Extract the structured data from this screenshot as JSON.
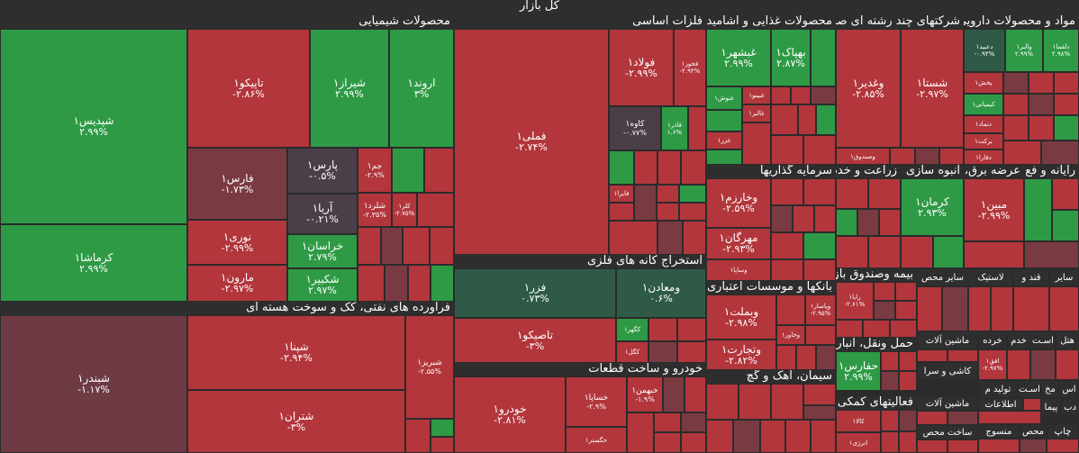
{
  "title": "کل بازار",
  "colors": {
    "green": "#2f9a46",
    "red": "#b2363c",
    "dark_red": "#7a3a42",
    "maroon": "#6e3b45",
    "gray": "#4a3f48",
    "dark_green": "#2f5a47",
    "header": "#2e2e2e"
  },
  "sectors": {
    "chemical": "محصولات شیمیایی",
    "metals": "فلزات اساسی",
    "food": "محصولات غذایی و آشامیدنی",
    "multi": "شرکتهای چند رشته ای صنع",
    "pharma": "مواد و محصولات دارویی",
    "oil": "فراورده های نفتی، کک و سوخت هسته ای",
    "mining": "استخراج کانه های فلزی",
    "auto": "خودرو و ساخت قطعات",
    "investment": "سرمایه گذاریها",
    "banks": "بانکها و موسسات اعتباری",
    "cement": "سیمان، آهک و گچ",
    "agri": "زراعت و خدم",
    "mass": "انبوه سازی",
    "power": "عرضه برق، گ",
    "it": "رایانه و فع",
    "insurance": "بیمه وصندوق باز",
    "transport": "حمل ونقل، انبار",
    "aux": "فعالیتهای کمکی ب",
    "other": "سایر",
    "rubber": "لاستیک",
    "misc": "سایر محص",
    "sugar": "قند و",
    "machinery": "ماشین آلات",
    "retail": "خرده",
    "hotel": "هتل",
    "trade": "اسـت",
    "services": "خدم",
    "tile": "کاشی و سرا",
    "machinery2": "ماشین آلات",
    "electric": "ساخت محص",
    "textile": "منسوج",
    "publish": "اطلاعات",
    "deposit": "تولید م",
    "mining2": "اسـت",
    "mining3": "اس",
    "wood": "چاپ",
    "coal": "مخ",
    "office": "دب",
    "leather": "محص",
    "paper": "پیما"
  },
  "tiles": {
    "shdis": {
      "name": "شپدیس۱",
      "pct": "۲.۹۹%"
    },
    "kermasha": {
      "name": "کرماشا۱",
      "pct": "۲.۹۹%"
    },
    "tapiko": {
      "name": "تاپیکو۱",
      "pct": "-۲.۸۶%"
    },
    "shiraz": {
      "name": "شیراز۱",
      "pct": "۲.۹۹%"
    },
    "arvand": {
      "name": "اروند۱",
      "pct": "۳%"
    },
    "fars": {
      "name": "فارس۱",
      "pct": "-۱.۷۳%"
    },
    "pars": {
      "name": "پارس۱",
      "pct": "-۰.۵%"
    },
    "jam": {
      "name": "جم۱",
      "pct": "-۲.۹%"
    },
    "noori": {
      "name": "نوری۱",
      "pct": "-۲.۹۹%"
    },
    "arya": {
      "name": "آریا۱",
      "pct": "-۰.۲۱%"
    },
    "shalard": {
      "name": "شلرد۱",
      "pct": "-۲.۳۵%"
    },
    "kala": {
      "name": "کلر۱",
      "pct": "-۲.۷۵%"
    },
    "khorasan": {
      "name": "خراسان۱",
      "pct": "۲.۷۹%"
    },
    "marun": {
      "name": "مارون۱",
      "pct": "-۲.۹۷%"
    },
    "shekbir": {
      "name": "شکبیر۱",
      "pct": "۲.۹۷%"
    },
    "shbandar": {
      "name": "شبندر۱",
      "pct": "-۱.۱۷%"
    },
    "shpna": {
      "name": "شپنا۱",
      "pct": "-۲.۹۴%"
    },
    "shtran": {
      "name": "شتران۱",
      "pct": "-۳%"
    },
    "shbriz": {
      "name": "شبریز۱",
      "pct": "-۲.۵۵%"
    },
    "fameli": {
      "name": "فملی۱",
      "pct": "-۲.۷۴%"
    },
    "foolad": {
      "name": "فولاد۱",
      "pct": "-۲.۹۹%"
    },
    "fkhooz": {
      "name": "فخوز۱",
      "pct": "-۲.۹۴%"
    },
    "kaveh": {
      "name": "کاوه۱",
      "pct": "-۰.۷۷%"
    },
    "faghafgh": {
      "name": "فاذر۱",
      "pct": "۱.۶%"
    },
    "fasra": {
      "name": "فایرا۱",
      "pct": ""
    },
    "fazar": {
      "name": "فزر۱",
      "pct": "۰.۷۳%"
    },
    "vmaadan": {
      "name": "ومعادن۱",
      "pct": "۰.۶%"
    },
    "tapiko2": {
      "name": "تاصیکو۱",
      "pct": "-۳%"
    },
    "kegohar": {
      "name": "کگهر۱",
      "pct": ""
    },
    "kegol": {
      "name": "کگل۱",
      "pct": ""
    },
    "khodro": {
      "name": "خودرو۱",
      "pct": "-۲.۸۱%"
    },
    "khsapa": {
      "name": "خساپا۱",
      "pct": "-۲.۹%"
    },
    "khbahman": {
      "name": "خبهمن۱",
      "pct": "-۱.۹%"
    },
    "khgostar": {
      "name": "خگستر۱",
      "pct": ""
    },
    "ghshahd": {
      "name": "غبشهر۱",
      "pct": "۲.۹۹%"
    },
    "behpak": {
      "name": "بهپاک۱",
      "pct": "۲.۸۷%"
    },
    "ghnoosh": {
      "name": "غنوش۱",
      "pct": ""
    },
    "ghbino": {
      "name": "غبینو۱",
      "pct": ""
    },
    "ghaleb": {
      "name": "غالبر۱",
      "pct": ""
    },
    "ghazar": {
      "name": "غزر۱",
      "pct": ""
    },
    "vghadir": {
      "name": "وغدیر۱",
      "pct": "-۲.۸۵%"
    },
    "shasta": {
      "name": "شستا۱",
      "pct": "-۲.۹۷%"
    },
    "vsandoq": {
      "name": "وصندوق۱",
      "pct": ""
    },
    "dabid": {
      "name": "دعبید۱",
      "pct": "-۰.۹۴%"
    },
    "valbar": {
      "name": "والبر۱",
      "pct": "۲.۹۹%"
    },
    "dlghma": {
      "name": "دلقما۱",
      "pct": "۲.۹۸%"
    },
    "pakhsh": {
      "name": "پخش۱",
      "pct": ""
    },
    "kimiayi": {
      "name": "کیمیاتی۱",
      "pct": ""
    },
    "dtmad": {
      "name": "دتماد۱",
      "pct": ""
    },
    "barkat": {
      "name": "برکت۱",
      "pct": ""
    },
    "dfara": {
      "name": "دفارا۱",
      "pct": ""
    },
    "vkharazm": {
      "name": "وخارزم۱",
      "pct": "-۲.۵۹%"
    },
    "mehrgan": {
      "name": "مهرگان۱",
      "pct": "-۲.۹۳%"
    },
    "vsapa": {
      "name": "وساپا۱",
      "pct": ""
    },
    "vbemellat": {
      "name": "وبملت۱",
      "pct": "-۲.۹۸%"
    },
    "vtejarat": {
      "name": "وتجارت۱",
      "pct": "-۲.۸۲%"
    },
    "vkhavar": {
      "name": "وخاور۱",
      "pct": ""
    },
    "vpasar": {
      "name": "وپاسار۱",
      "pct": "-۲.۹۵%"
    },
    "kerman": {
      "name": "کرمان۱",
      "pct": "۲.۹۳%"
    },
    "mabin": {
      "name": "مبین۱",
      "pct": "-۲.۹۹%"
    },
    "rapa": {
      "name": "رایا۱",
      "pct": "-۲.۶۱%"
    },
    "hafarys": {
      "name": "حفارس۱",
      "pct": "۲.۹۹%"
    },
    "afgh": {
      "name": "افق۱",
      "pct": "-۲.۹۷%"
    },
    "kala2": {
      "name": "کالا۱",
      "pct": ""
    },
    "enerzhi": {
      "name": "انرژی۱",
      "pct": ""
    }
  }
}
